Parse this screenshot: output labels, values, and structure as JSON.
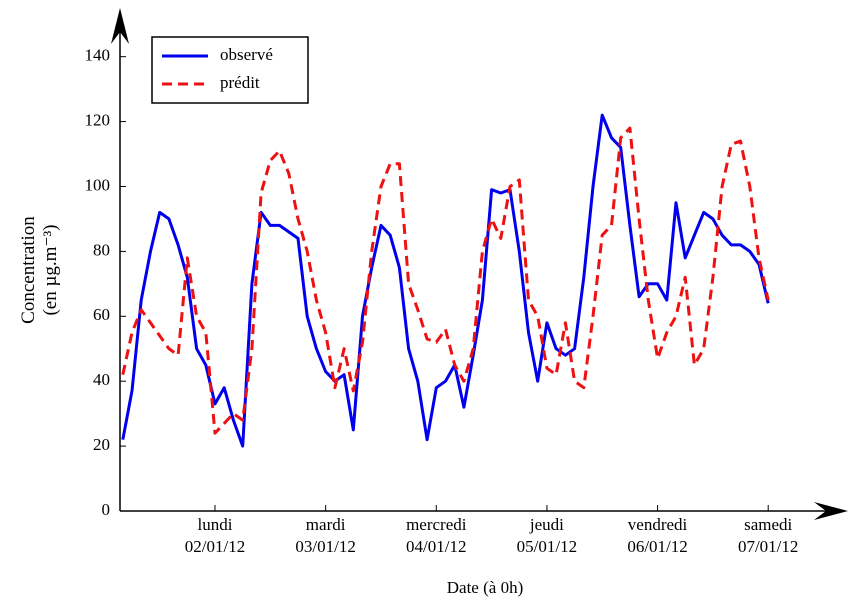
{
  "chart_data": {
    "type": "line",
    "xlabel": "Date (à 0h)",
    "ylabel": "Concentration\n(en µg.m⁻³)",
    "categories": [
      null,
      null,
      null,
      null,
      null,
      null,
      null,
      null,
      null,
      null,
      "lundi\n02/01/12",
      null,
      null,
      null,
      null,
      null,
      null,
      null,
      null,
      null,
      null,
      null,
      "mardi\n03/01/12",
      null,
      null,
      null,
      null,
      null,
      null,
      null,
      null,
      null,
      null,
      null,
      "mercredi\n04/01/12",
      null,
      null,
      null,
      null,
      null,
      null,
      null,
      null,
      null,
      null,
      null,
      "jeudi\n05/01/12",
      null,
      null,
      null,
      null,
      null,
      null,
      null,
      null,
      null,
      null,
      null,
      "vendredi\n06/01/12",
      null,
      null,
      null,
      null,
      null,
      null,
      null,
      null,
      null,
      null,
      null,
      "samedi\n07/01/12"
    ],
    "series": [
      {
        "name": "observé",
        "color": "#0000ee",
        "style": "solid",
        "values": [
          22,
          37,
          65,
          80,
          92,
          90,
          82,
          72,
          50,
          45,
          33,
          38,
          28,
          20,
          70,
          92,
          88,
          88,
          86,
          84,
          60,
          50,
          43,
          40,
          42,
          25,
          60,
          75,
          88,
          85,
          75,
          50,
          40,
          22,
          38,
          40,
          45,
          32,
          48,
          65,
          99,
          98,
          99,
          80,
          55,
          40,
          58,
          50,
          48,
          50,
          72,
          100,
          122,
          115,
          112,
          88,
          66,
          70,
          70,
          65,
          95,
          78,
          85,
          92,
          90,
          85,
          82,
          82,
          80,
          76,
          64
        ]
      },
      {
        "name": "prédit",
        "color": "#ee1111",
        "style": "dashed",
        "values": [
          42,
          55,
          62,
          58,
          54,
          50,
          48,
          78,
          60,
          55,
          24,
          27,
          30,
          28,
          50,
          98,
          108,
          111,
          104,
          90,
          80,
          65,
          55,
          38,
          50,
          37,
          52,
          80,
          100,
          107,
          107,
          70,
          62,
          53,
          52,
          56,
          45,
          40,
          50,
          80,
          90,
          84,
          100,
          102,
          65,
          60,
          44,
          42,
          58,
          40,
          38,
          60,
          85,
          88,
          115,
          118,
          90,
          65,
          47,
          55,
          60,
          72,
          45,
          50,
          72,
          100,
          113,
          114,
          100,
          78,
          65
        ]
      }
    ],
    "ylim": [
      0,
      155
    ],
    "yticks": [
      0,
      20,
      40,
      60,
      80,
      100,
      120,
      140
    ],
    "legend": "upper left"
  }
}
